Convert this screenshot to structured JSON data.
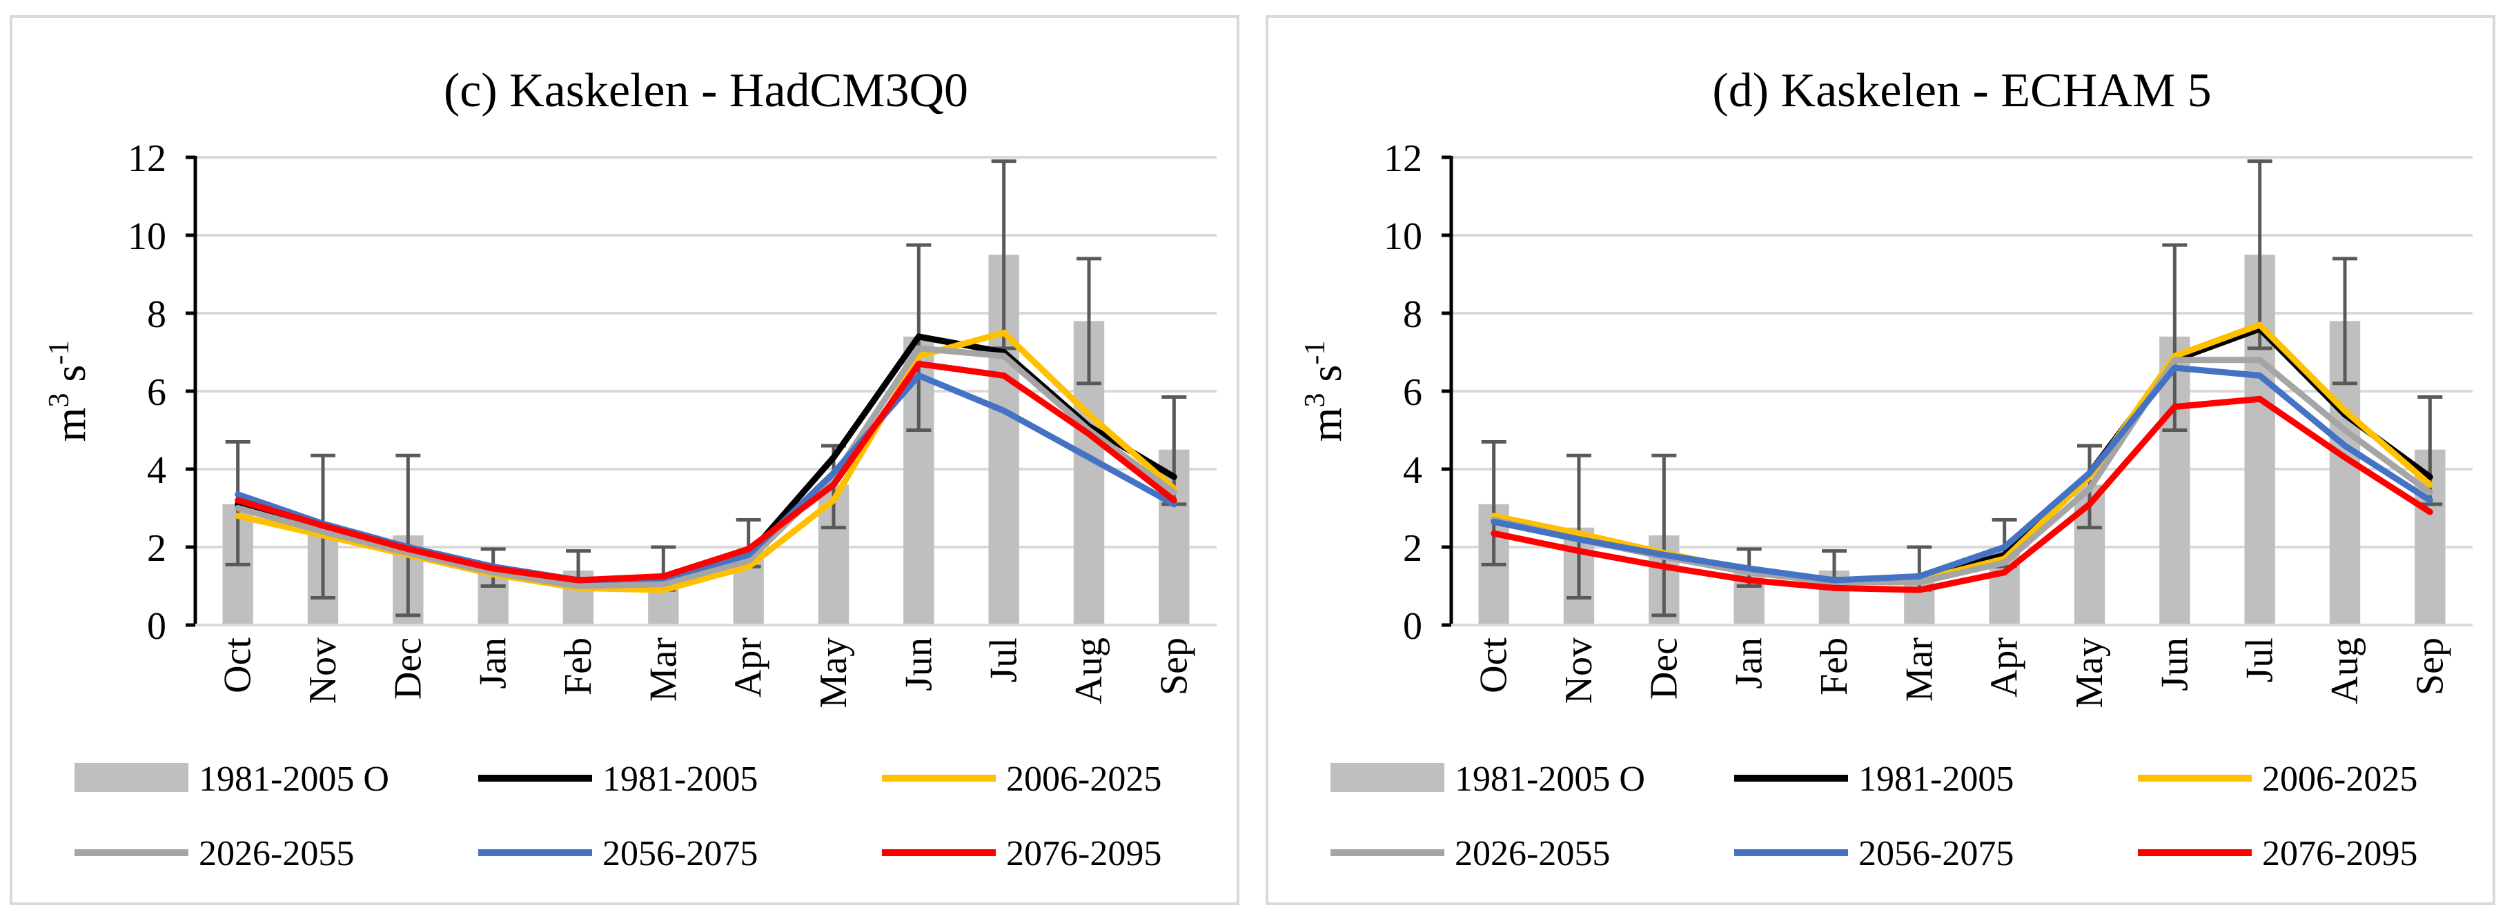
{
  "chart_data": [
    {
      "type": "bar+line",
      "title": "(c) Kaskelen - HadCM3Q0",
      "ylabel": {
        "base": "m",
        "sup1": "3",
        "mid": " s",
        "sup2": "-1"
      },
      "ylim": [
        0,
        12
      ],
      "yticks": [
        0,
        2,
        4,
        6,
        8,
        10,
        12
      ],
      "categories": [
        "Oct",
        "Nov",
        "Dec",
        "Jan",
        "Feb",
        "Mar",
        "Apr",
        "May",
        "Jun",
        "Jul",
        "Aug",
        "Sep"
      ],
      "bars": {
        "name": "1981-2005 O",
        "color": "#bfbfbf",
        "values": [
          3.1,
          2.5,
          2.3,
          1.4,
          1.4,
          1.3,
          1.9,
          3.6,
          7.4,
          9.5,
          7.8,
          4.5
        ],
        "error_low": [
          1.55,
          0.7,
          0.25,
          1.0,
          1.0,
          0.9,
          1.5,
          2.5,
          5.0,
          7.1,
          6.2,
          3.1
        ],
        "error_high": [
          4.7,
          4.35,
          4.35,
          1.95,
          1.9,
          2.0,
          2.7,
          4.6,
          9.75,
          11.9,
          9.4,
          5.85
        ]
      },
      "series": [
        {
          "name": "1981-2005",
          "color": "#000000",
          "values": [
            3.1,
            2.55,
            2.0,
            1.45,
            1.1,
            1.15,
            1.8,
            4.3,
            7.4,
            7.0,
            5.1,
            3.8
          ]
        },
        {
          "name": "2006-2025",
          "color": "#ffc000",
          "values": [
            2.8,
            2.3,
            1.8,
            1.3,
            0.95,
            0.9,
            1.5,
            3.2,
            6.9,
            7.5,
            5.4,
            3.5
          ]
        },
        {
          "name": "2026-2055",
          "color": "#a5a5a5",
          "values": [
            3.0,
            2.4,
            1.85,
            1.35,
            1.0,
            1.05,
            1.65,
            3.8,
            7.1,
            6.9,
            5.0,
            3.4
          ]
        },
        {
          "name": "2056-2075",
          "color": "#4472c4",
          "values": [
            3.35,
            2.6,
            2.0,
            1.5,
            1.15,
            1.2,
            1.8,
            3.9,
            6.4,
            5.5,
            4.3,
            3.1
          ]
        },
        {
          "name": "2076-2095",
          "color": "#ff0000",
          "values": [
            3.2,
            2.55,
            1.95,
            1.45,
            1.15,
            1.25,
            1.95,
            3.6,
            6.7,
            6.4,
            4.9,
            3.2
          ]
        }
      ]
    },
    {
      "type": "bar+line",
      "title": "(d) Kaskelen - ECHAM 5",
      "ylabel": {
        "base": "m",
        "sup1": "3",
        "mid": " s",
        "sup2": "-1"
      },
      "ylim": [
        0,
        12
      ],
      "yticks": [
        0,
        2,
        4,
        6,
        8,
        10,
        12
      ],
      "categories": [
        "Oct",
        "Nov",
        "Dec",
        "Jan",
        "Feb",
        "Mar",
        "Apr",
        "May",
        "Jun",
        "Jul",
        "Aug",
        "Sep"
      ],
      "bars": {
        "name": "1981-2005 O",
        "color": "#bfbfbf",
        "values": [
          3.1,
          2.5,
          2.3,
          1.4,
          1.4,
          1.3,
          1.9,
          3.6,
          7.4,
          9.5,
          7.8,
          4.5
        ],
        "error_low": [
          1.55,
          0.7,
          0.25,
          1.0,
          1.0,
          0.9,
          1.5,
          2.5,
          5.0,
          7.1,
          6.2,
          3.1
        ],
        "error_high": [
          4.7,
          4.35,
          4.35,
          1.95,
          1.9,
          2.0,
          2.7,
          4.6,
          9.75,
          11.9,
          9.4,
          5.85
        ]
      },
      "series": [
        {
          "name": "1981-2005",
          "color": "#000000",
          "values": [
            2.7,
            2.3,
            1.8,
            1.4,
            1.15,
            1.2,
            1.8,
            3.9,
            6.8,
            7.6,
            5.4,
            3.8
          ]
        },
        {
          "name": "2006-2025",
          "color": "#ffc000",
          "values": [
            2.8,
            2.35,
            1.85,
            1.4,
            1.1,
            1.15,
            1.7,
            3.8,
            6.9,
            7.7,
            5.5,
            3.6
          ]
        },
        {
          "name": "2026-2055",
          "color": "#a5a5a5",
          "values": [
            2.7,
            2.2,
            1.75,
            1.35,
            1.1,
            1.1,
            1.6,
            3.5,
            6.8,
            6.8,
            5.0,
            3.4
          ]
        },
        {
          "name": "2056-2075",
          "color": "#4472c4",
          "values": [
            2.65,
            2.2,
            1.8,
            1.45,
            1.15,
            1.25,
            2.0,
            3.9,
            6.6,
            6.4,
            4.6,
            3.2
          ]
        },
        {
          "name": "2076-2095",
          "color": "#ff0000",
          "values": [
            2.35,
            1.9,
            1.5,
            1.15,
            0.95,
            0.9,
            1.35,
            3.1,
            5.6,
            5.8,
            4.3,
            2.9
          ]
        }
      ],
      "legend_order": [
        "1981-2005 O",
        "1981-2005",
        "2006-2025",
        "2026-2055",
        "2056-2075",
        "2076-2095"
      ]
    }
  ]
}
